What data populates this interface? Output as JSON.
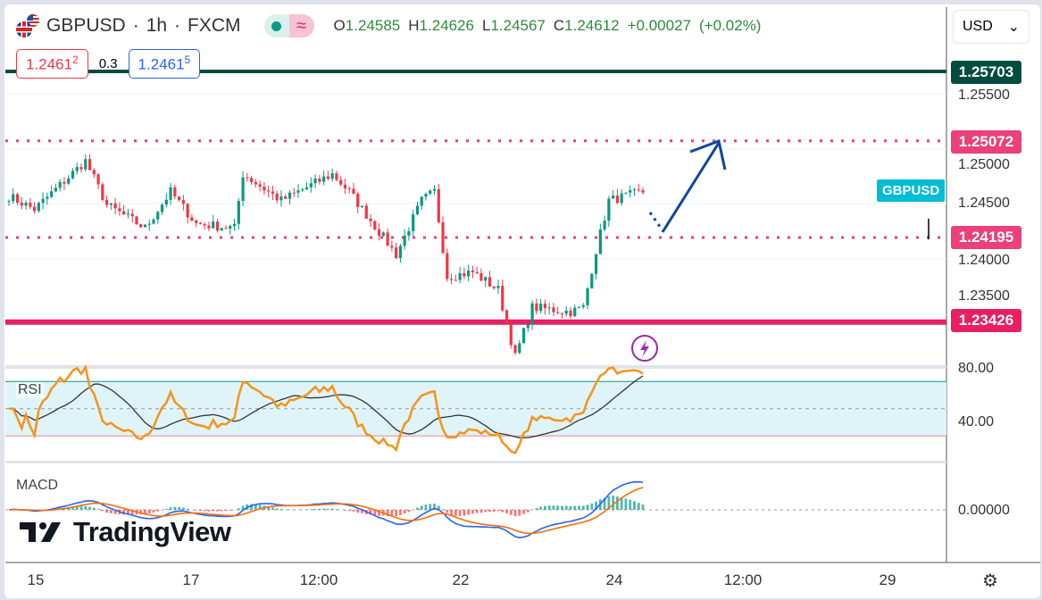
{
  "header": {
    "symbol": "GBPUSD",
    "interval": "1h",
    "exchange": "FXCM",
    "separator": "·",
    "ohlc": {
      "o_label": "O",
      "o": "1.24585",
      "h_label": "H",
      "h": "1.24626",
      "l_label": "L",
      "l": "1.24567",
      "c_label": "C",
      "c": "1.24612",
      "change": "+0.00027",
      "change_pct": "(+0.02%)"
    },
    "status_icon": "market-open-dot",
    "data_icon": "approx-icon"
  },
  "trade": {
    "sell_price": "1.2461",
    "sell_pip": "2",
    "spread": "0.3",
    "buy_price": "1.2461",
    "buy_pip": "5"
  },
  "currency_select": {
    "value": "USD"
  },
  "price_axis": {
    "ticks": [
      "1.25500",
      "1.25000",
      "1.24500",
      "1.24000",
      "1.23500"
    ]
  },
  "levels": [
    {
      "label": "1.25703",
      "price": 1.25703,
      "color": "#004d40",
      "style": "solid"
    },
    {
      "label": "1.25072",
      "price": 1.25072,
      "color": "#ec407a",
      "style": "dotted"
    },
    {
      "label": "1.24195",
      "price": 1.24195,
      "color": "#ec407a",
      "style": "dotted"
    },
    {
      "label": "1.23426",
      "price": 1.23426,
      "color": "#e91e63",
      "style": "solid"
    }
  ],
  "symbol_tag": "GBPUSD",
  "price_path": [
    [
      0,
      1.2457
    ],
    [
      6,
      1.2445
    ],
    [
      18,
      1.2489
    ],
    [
      23,
      1.2449
    ],
    [
      32,
      1.2428
    ],
    [
      38,
      1.2461
    ],
    [
      44,
      1.2432
    ],
    [
      53,
      1.2428
    ],
    [
      55,
      1.2477
    ],
    [
      64,
      1.2453
    ],
    [
      76,
      1.2477
    ],
    [
      80,
      1.2461
    ],
    [
      91,
      1.2404
    ],
    [
      97,
      1.2453
    ],
    [
      100,
      1.2461
    ],
    [
      103,
      1.2384
    ],
    [
      109,
      1.2388
    ],
    [
      115,
      1.2372
    ],
    [
      119,
      1.2311
    ],
    [
      123,
      1.2356
    ],
    [
      132,
      1.2352
    ],
    [
      135,
      1.2356
    ],
    [
      138,
      1.2408
    ],
    [
      141,
      1.2453
    ],
    [
      149,
      1.2461
    ]
  ],
  "rsi": {
    "label": "RSI",
    "ticks": [
      "80.00",
      "40.00"
    ]
  },
  "macd": {
    "label": "MACD",
    "ticks": [
      "0.00000"
    ]
  },
  "time_axis": [
    "15",
    "17",
    "12:00",
    "22",
    "24",
    "12:00",
    "29"
  ],
  "logo": "TradingView",
  "colors": {
    "up": "#089981",
    "down": "#f23645",
    "rsi": "#f7931a",
    "macd": "#2962ff",
    "signal": "#ff6d00",
    "arrow": "#0d47a1"
  }
}
